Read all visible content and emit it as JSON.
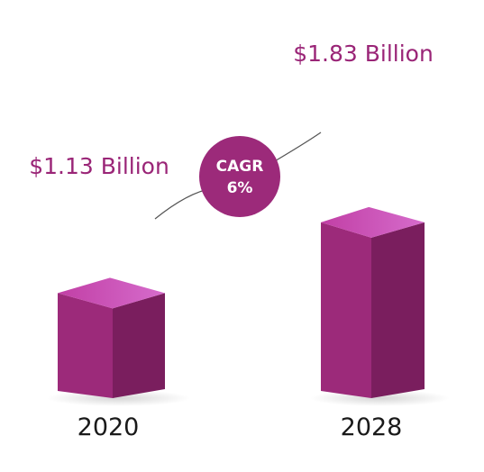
{
  "chart_data": {
    "type": "bar",
    "categories": [
      "2020",
      "2028"
    ],
    "values": [
      1.13,
      1.83
    ],
    "value_labels": [
      "$1.13 Billion",
      "$1.83 Billion"
    ],
    "annotation": {
      "line1": "CAGR",
      "line2": "6%"
    },
    "colors": {
      "front": "#9c2a7a",
      "side": "#7a1e5e",
      "top": "#c13fa5",
      "top_highlight": "#d66ccc",
      "label": "#9a2577",
      "badge": "#9c2a7a"
    }
  }
}
